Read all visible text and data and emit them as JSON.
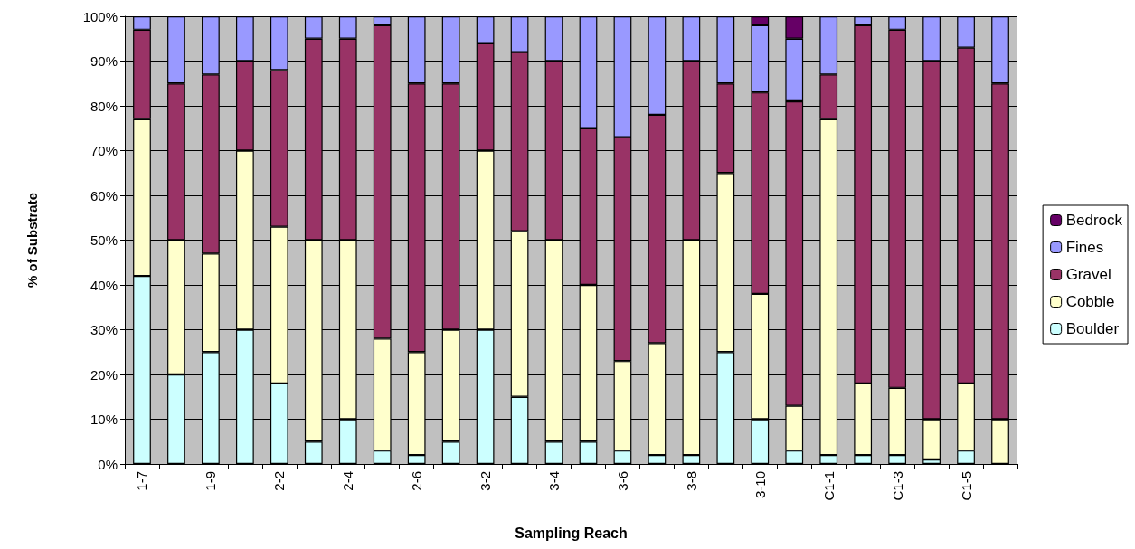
{
  "chart_data": {
    "type": "bar",
    "stacked": true,
    "xlabel": "Sampling Reach",
    "ylabel": "% of Substrate",
    "categories": [
      "1-7",
      null,
      "1-9",
      null,
      "2-2",
      null,
      "2-4",
      null,
      "2-6",
      null,
      "3-2",
      null,
      "3-4",
      null,
      "3-6",
      null,
      "3-8",
      null,
      "3-10",
      null,
      "C1-1",
      null,
      "C1-3",
      null,
      "C1-5",
      null
    ],
    "series": [
      {
        "name": "Boulder",
        "color": "#ccffff",
        "values": [
          42,
          20,
          25,
          30,
          18,
          5,
          10,
          3,
          2,
          5,
          30,
          15,
          5,
          5,
          3,
          2,
          2,
          25,
          10,
          3,
          2,
          2,
          2,
          1,
          3,
          0
        ]
      },
      {
        "name": "Cobble",
        "color": "#ffffcc",
        "values": [
          35,
          30,
          22,
          40,
          35,
          45,
          40,
          25,
          23,
          25,
          40,
          37,
          45,
          35,
          20,
          25,
          48,
          40,
          28,
          10,
          75,
          16,
          15,
          9,
          15,
          10
        ]
      },
      {
        "name": "Gravel",
        "color": "#993366",
        "values": [
          20,
          35,
          40,
          20,
          35,
          45,
          45,
          70,
          60,
          55,
          24,
          40,
          40,
          35,
          50,
          51,
          40,
          20,
          45,
          68,
          10,
          80,
          80,
          80,
          75,
          75
        ]
      },
      {
        "name": "Fines",
        "color": "#9999ff",
        "values": [
          3,
          15,
          13,
          10,
          12,
          5,
          5,
          2,
          15,
          15,
          6,
          8,
          10,
          25,
          27,
          22,
          10,
          15,
          15,
          14,
          13,
          2,
          3,
          10,
          7,
          15
        ]
      },
      {
        "name": "Bedrock",
        "color": "#660066",
        "values": [
          null,
          null,
          null,
          null,
          null,
          null,
          null,
          null,
          null,
          null,
          null,
          null,
          null,
          null,
          null,
          null,
          null,
          null,
          2,
          5,
          null,
          null,
          null,
          null,
          null,
          null
        ]
      }
    ],
    "ylim": [
      0,
      100
    ],
    "yticks": [
      {
        "value": 0,
        "label": "0%"
      },
      {
        "value": 10,
        "label": "10%"
      },
      {
        "value": 20,
        "label": "20%"
      },
      {
        "value": 30,
        "label": "30%"
      },
      {
        "value": 40,
        "label": "40%"
      },
      {
        "value": 50,
        "label": "50%"
      },
      {
        "value": 60,
        "label": "60%"
      },
      {
        "value": 70,
        "label": "70%"
      },
      {
        "value": 80,
        "label": "80%"
      },
      {
        "value": 90,
        "label": "90%"
      },
      {
        "value": 100,
        "label": "100%"
      }
    ],
    "grid": "y",
    "legend": "right"
  }
}
